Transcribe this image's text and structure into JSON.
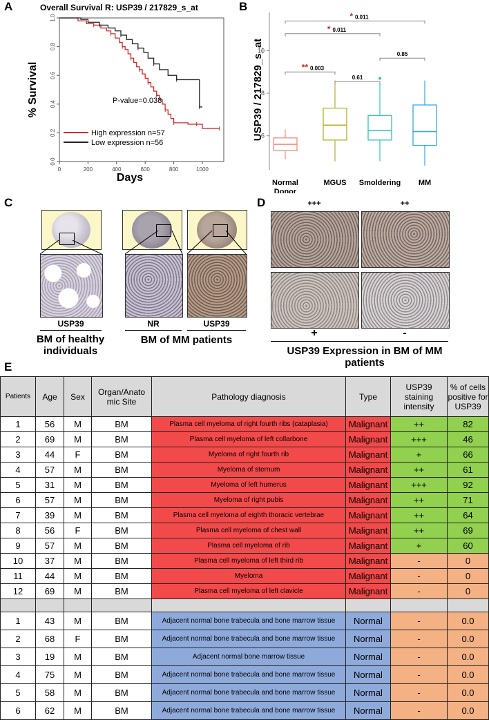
{
  "panels": {
    "a": "A",
    "b": "B",
    "c": "C",
    "d": "D",
    "e": "E"
  },
  "panel_a": {
    "chart_data": {
      "type": "line",
      "title": "Overall Survival R: USP39 / 217829_s_at",
      "xlabel": "Days",
      "ylabel": "% Survival",
      "xlim": [
        0,
        1150
      ],
      "ylim": [
        0,
        1.0
      ],
      "xticks": [
        "0",
        "200",
        "400",
        "600",
        "800",
        "1000"
      ],
      "yticks": [
        "0.0",
        "0.2",
        "0.4",
        "0.6",
        "0.8",
        "1.0"
      ],
      "pvalue": "P-value=0.038",
      "series": [
        {
          "name": "High expression n=57",
          "color": "#d62728",
          "x": [
            0,
            130,
            190,
            240,
            290,
            330,
            360,
            390,
            420,
            440,
            460,
            480,
            500,
            520,
            540,
            560,
            580,
            600,
            620,
            640,
            660,
            680,
            700,
            720,
            740,
            760,
            780,
            800,
            840,
            900,
            960,
            1000,
            1050,
            1120
          ],
          "y": [
            1.0,
            0.98,
            0.96,
            0.95,
            0.93,
            0.91,
            0.89,
            0.86,
            0.83,
            0.8,
            0.78,
            0.75,
            0.72,
            0.69,
            0.66,
            0.64,
            0.61,
            0.58,
            0.55,
            0.52,
            0.49,
            0.46,
            0.43,
            0.4,
            0.36,
            0.33,
            0.3,
            0.27,
            0.27,
            0.26,
            0.26,
            0.23,
            0.23,
            0.23
          ]
        },
        {
          "name": "Low expression n=56",
          "color": "#222222",
          "x": [
            0,
            150,
            200,
            280,
            340,
            390,
            430,
            470,
            510,
            550,
            590,
            620,
            660,
            700,
            760,
            820,
            900,
            960,
            980,
            1000
          ],
          "y": [
            1.0,
            0.99,
            0.97,
            0.95,
            0.93,
            0.91,
            0.88,
            0.85,
            0.82,
            0.79,
            0.76,
            0.72,
            0.68,
            0.64,
            0.6,
            0.57,
            0.57,
            0.57,
            0.38,
            0.38
          ]
        }
      ]
    }
  },
  "panel_b": {
    "chart_data": {
      "type": "box",
      "ylabel": "USP39 / 217829_s_at",
      "ylim": [
        4.4,
        11.8
      ],
      "yticks": [
        "6",
        "8",
        "10"
      ],
      "categories": [
        "Normal Donor",
        "MGUS",
        "Smoldering",
        "MM"
      ],
      "colors": [
        "#f08c7e",
        "#b6b024",
        "#2ec4b6",
        "#3aa7df"
      ],
      "boxes": [
        {
          "min": 4.9,
          "q1": 5.3,
          "median": 5.6,
          "q3": 5.9,
          "max": 6.3
        },
        {
          "min": 4.8,
          "q1": 5.8,
          "median": 6.5,
          "q3": 7.3,
          "max": 8.6
        },
        {
          "min": 4.8,
          "q1": 5.8,
          "median": 6.25,
          "q3": 6.95,
          "max": 8.5,
          "outliers": [
            8.7
          ]
        },
        {
          "min": 4.6,
          "q1": 5.55,
          "median": 6.2,
          "q3": 7.45,
          "max": 8.6
        }
      ],
      "comparisons": [
        {
          "from": 0,
          "to": 1,
          "label": "0.003",
          "stars": "**",
          "level": 9.0
        },
        {
          "from": 1,
          "to": 2,
          "label": "0.61",
          "stars": "",
          "level": 8.55
        },
        {
          "from": 2,
          "to": 3,
          "label": "0.85",
          "stars": "",
          "level": 9.65
        },
        {
          "from": 0,
          "to": 2,
          "label": "0.011",
          "stars": "*",
          "level": 10.8
        },
        {
          "from": 0,
          "to": 3,
          "label": "0.011",
          "stars": "*",
          "level": 11.4
        }
      ]
    }
  },
  "panel_c": {
    "small_labels": [
      "USP39",
      "NR",
      "USP39"
    ],
    "caption_left": [
      "BM of  healthy",
      "individuals"
    ],
    "caption_right": "BM of MM patients"
  },
  "panel_d": {
    "top_labels": [
      "+++",
      "++"
    ],
    "bottom_labels": [
      "+",
      "-"
    ],
    "caption": [
      "USP39 Expression in BM of MM",
      "patients"
    ]
  },
  "table": {
    "headers": [
      "Patients",
      "Age",
      "Sex",
      "Organ/Anato mic Site",
      "Pathology diagnosis",
      "Type",
      "USP39 staining intensity",
      "% of cells positive for USP39"
    ],
    "malignant_rows": [
      {
        "id": "1",
        "age": "56",
        "sex": "M",
        "site": "BM",
        "diagnosis": "Plasma cell myeloma of right fourth ribs (cataplasia)",
        "type": "Malignant",
        "intensity": "++",
        "percent": "82"
      },
      {
        "id": "2",
        "age": "69",
        "sex": "M",
        "site": "BM",
        "diagnosis": "Plasma cell myeloma of left collarbone",
        "type": "Malignant",
        "intensity": "+++",
        "percent": "46"
      },
      {
        "id": "3",
        "age": "44",
        "sex": "F",
        "site": "BM",
        "diagnosis": "Myeloma of right fourth rib",
        "type": "Malignant",
        "intensity": "+",
        "percent": "66"
      },
      {
        "id": "4",
        "age": "57",
        "sex": "M",
        "site": "BM",
        "diagnosis": "Myeloma of sternum",
        "type": "Malignant",
        "intensity": "++",
        "percent": "61"
      },
      {
        "id": "5",
        "age": "31",
        "sex": "M",
        "site": "BM",
        "diagnosis": "Myeloma of left humerus",
        "type": "Malignant",
        "intensity": "+++",
        "percent": "92"
      },
      {
        "id": "6",
        "age": "57",
        "sex": "M",
        "site": "BM",
        "diagnosis": "Myeloma of right pubis",
        "type": "Malignant",
        "intensity": "++",
        "percent": "71"
      },
      {
        "id": "7",
        "age": "39",
        "sex": "M",
        "site": "BM",
        "diagnosis": "Plasma cell myeloma of eighth thoracic vertebrae",
        "type": "Malignant",
        "intensity": "++",
        "percent": "64"
      },
      {
        "id": "8",
        "age": "56",
        "sex": "F",
        "site": "BM",
        "diagnosis": "Plasma cell myeloma of chest wall",
        "type": "Malignant",
        "intensity": "++",
        "percent": "69"
      },
      {
        "id": "9",
        "age": "57",
        "sex": "M",
        "site": "BM",
        "diagnosis": "Plasma cell myeloma of rib",
        "type": "Malignant",
        "intensity": "+",
        "percent": "60"
      },
      {
        "id": "10",
        "age": "37",
        "sex": "M",
        "site": "BM",
        "diagnosis": "Plasma cell myeloma of left third rib",
        "type": "Malignant",
        "intensity": "-",
        "percent": "0"
      },
      {
        "id": "11",
        "age": "44",
        "sex": "M",
        "site": "BM",
        "diagnosis": "Myeloma",
        "type": "Malignant",
        "intensity": "-",
        "percent": "0"
      },
      {
        "id": "12",
        "age": "69",
        "sex": "M",
        "site": "BM",
        "diagnosis": "Plasma cell myeloma of left clavicle",
        "type": "Malignant",
        "intensity": "-",
        "percent": "0"
      }
    ],
    "normal_rows": [
      {
        "id": "1",
        "age": "43",
        "sex": "M",
        "site": "BM",
        "diagnosis": "Adjacent normal bone trabecula and bone marrow tissue",
        "type": "Normal",
        "intensity": "-",
        "percent": "0.0"
      },
      {
        "id": "2",
        "age": "68",
        "sex": "F",
        "site": "BM",
        "diagnosis": "Adjacent normal bone trabecula and bone marrow tissue",
        "type": "Normal",
        "intensity": "-",
        "percent": "0.0"
      },
      {
        "id": "3",
        "age": "19",
        "sex": "M",
        "site": "BM",
        "diagnosis": "Adjacent normal bone marrow tissue",
        "type": "Normal",
        "intensity": "-",
        "percent": "0.0"
      },
      {
        "id": "4",
        "age": "75",
        "sex": "M",
        "site": "BM",
        "diagnosis": "Adjacent normal bone trabecula and bone marrow tissue",
        "type": "Normal",
        "intensity": "-",
        "percent": "0.0"
      },
      {
        "id": "5",
        "age": "58",
        "sex": "M",
        "site": "BM",
        "diagnosis": "Adjacent normal bone trabecula and bone marrow tissue",
        "type": "Normal",
        "intensity": "-",
        "percent": "0.0"
      },
      {
        "id": "6",
        "age": "62",
        "sex": "M",
        "site": "BM",
        "diagnosis": "Adjacent normal bone trabecula and bone marrow tissue",
        "type": "Normal",
        "intensity": "-",
        "percent": "0.0"
      }
    ]
  }
}
